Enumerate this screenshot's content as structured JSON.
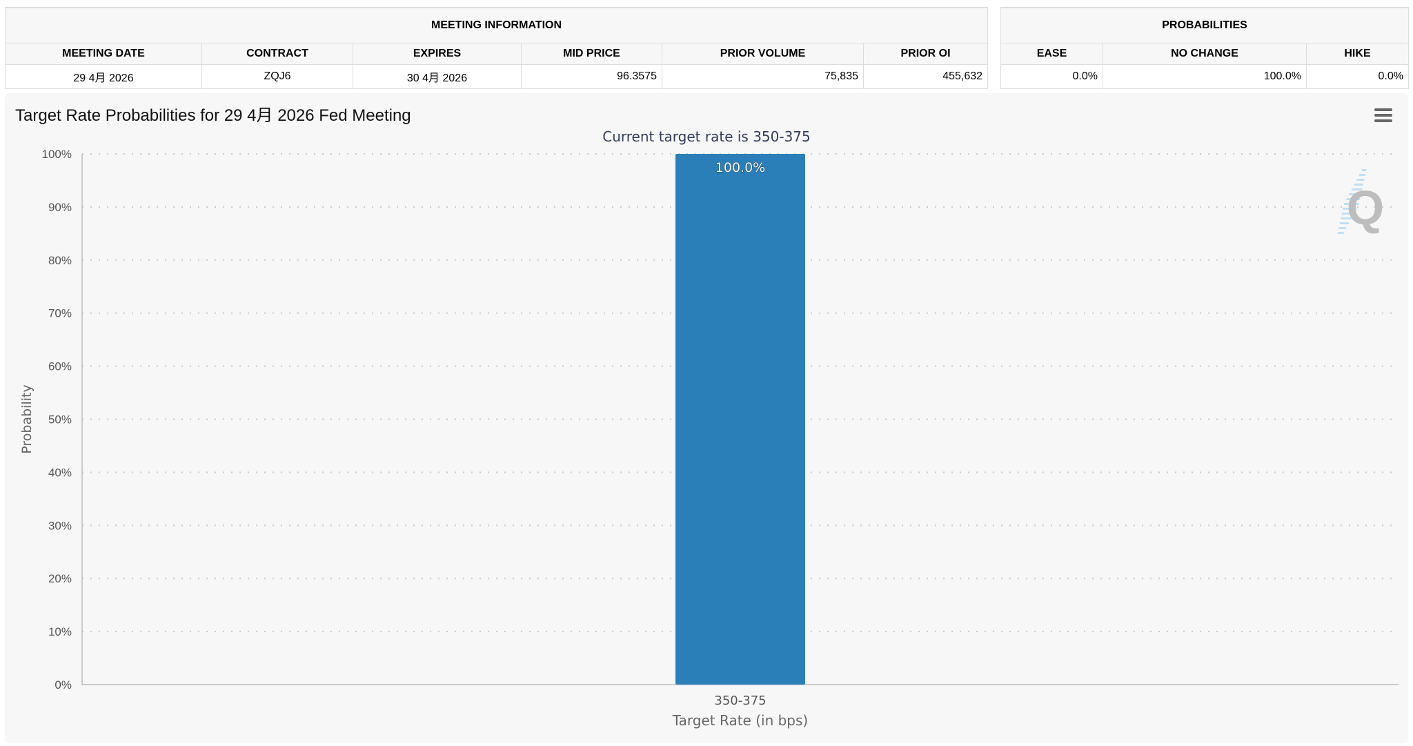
{
  "meeting_info": {
    "group_header": "MEETING INFORMATION",
    "columns": [
      "MEETING DATE",
      "CONTRACT",
      "EXPIRES",
      "MID PRICE",
      "PRIOR VOLUME",
      "PRIOR OI"
    ],
    "row": [
      "29 4月 2026",
      "ZQJ6",
      "30 4月 2026",
      "96.3575",
      "75,835",
      "455,632"
    ]
  },
  "probabilities": {
    "group_header": "PROBABILITIES",
    "columns": [
      "EASE",
      "NO CHANGE",
      "HIKE"
    ],
    "row": [
      "0.0%",
      "100.0%",
      "0.0%"
    ]
  },
  "chart_data": {
    "type": "bar",
    "title": "Target Rate Probabilities for 29 4月 2026 Fed Meeting",
    "subtitle": "Current target rate is 350-375",
    "categories": [
      "350-375"
    ],
    "values": [
      100.0
    ],
    "data_labels": [
      "100.0%"
    ],
    "xlabel": "Target Rate (in bps)",
    "ylabel": "Probability",
    "ylim": [
      0,
      100
    ],
    "yticks": [
      "0%",
      "10%",
      "20%",
      "30%",
      "40%",
      "50%",
      "60%",
      "70%",
      "80%",
      "90%",
      "100%"
    ],
    "grid": true,
    "bar_color": "#2a7fb8",
    "subtitle_color": "#333d5c",
    "watermark": "Q"
  },
  "icons": {
    "menu": "hamburger-menu-icon"
  }
}
